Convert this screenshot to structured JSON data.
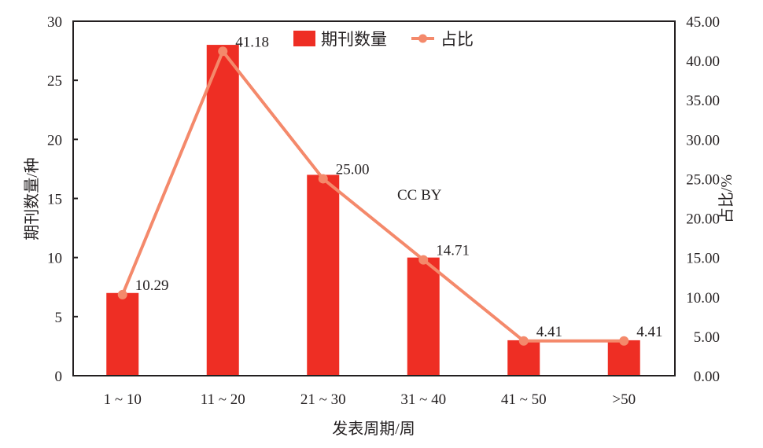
{
  "chart_data": {
    "type": "bar+line",
    "title": "",
    "categories": [
      "1 ~ 10",
      "11 ~ 20",
      "21 ~ 30",
      "31 ~ 40",
      "41 ~ 50",
      ">50"
    ],
    "series": [
      {
        "name": "期刊数量",
        "type": "bar",
        "axis": "left",
        "color": "#ee2e24",
        "values": [
          7,
          28,
          17,
          10,
          3,
          3
        ]
      },
      {
        "name": "占比",
        "type": "line",
        "axis": "right",
        "color": "#f4896b",
        "values": [
          10.29,
          41.18,
          25.0,
          14.71,
          4.41,
          4.41
        ],
        "labels": [
          "10.29",
          "41.18",
          "25.00",
          "14.71",
          "4.41",
          "4.41"
        ]
      }
    ],
    "xlabel": "发表周期/周",
    "ylabel": "期刊数量/种",
    "ylabel_right": "占比/%",
    "ylim": [
      0,
      30
    ],
    "ylim_right": [
      0,
      45
    ],
    "yticks": [
      "0",
      "5",
      "10",
      "15",
      "20",
      "25",
      "30"
    ],
    "yticks_right": [
      "0.00",
      "5.00",
      "10.00",
      "15.00",
      "20.00",
      "25.00",
      "30.00",
      "35.00",
      "40.00",
      "45.00"
    ],
    "legend_position": "top-center",
    "grid": false,
    "annotations": [
      "CC BY"
    ]
  }
}
